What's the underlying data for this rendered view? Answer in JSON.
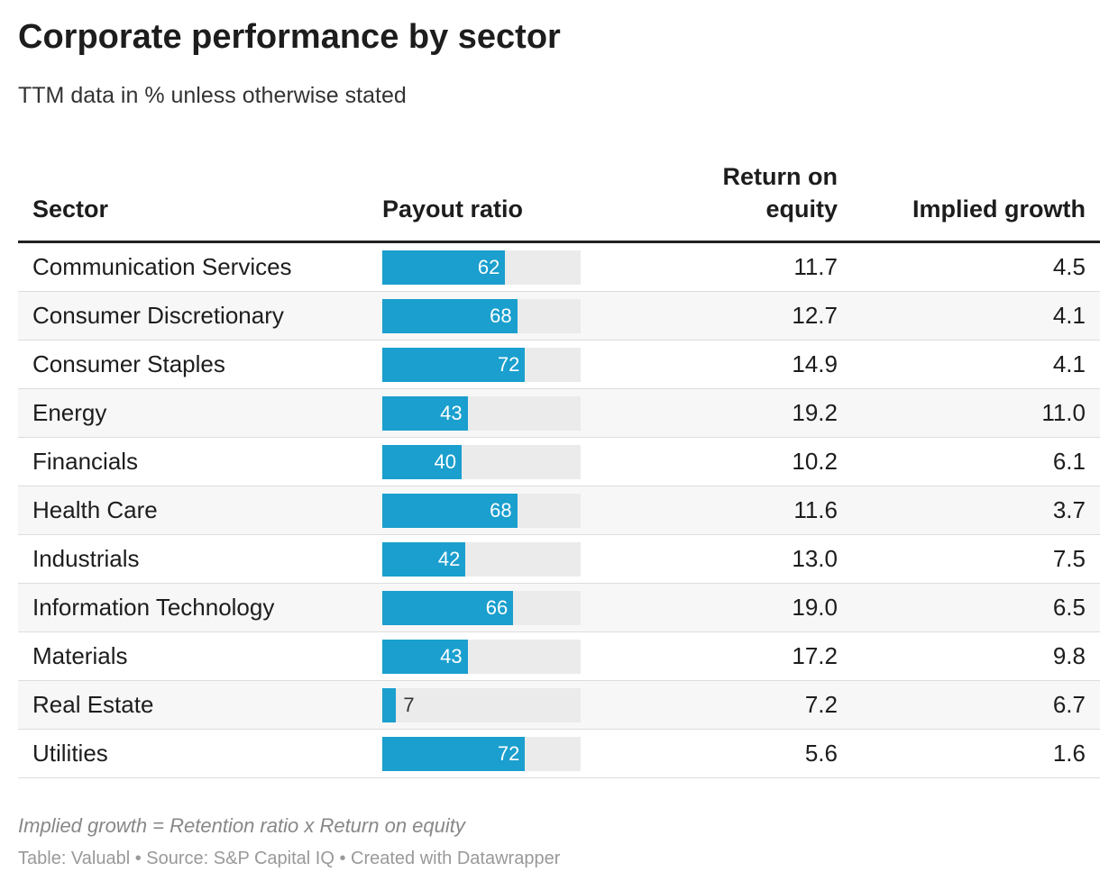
{
  "title": "Corporate performance by sector",
  "subtitle": "TTM data in % unless otherwise stated",
  "table": {
    "columns": [
      "Sector",
      "Payout ratio",
      "Return on equity",
      "Implied growth"
    ],
    "payout_xlim": [
      0,
      100
    ],
    "bar_color": "#1a9fce",
    "rows": [
      {
        "sector": "Communication Services",
        "payout": 62,
        "roe": 11.7,
        "growth": 4.5
      },
      {
        "sector": "Consumer Discretionary",
        "payout": 68,
        "roe": 12.7,
        "growth": 4.1
      },
      {
        "sector": "Consumer Staples",
        "payout": 72,
        "roe": 14.9,
        "growth": 4.1
      },
      {
        "sector": "Energy",
        "payout": 43,
        "roe": 19.2,
        "growth": {
          "value": 11,
          "label": "11.0"
        }
      },
      {
        "sector": "Financials",
        "payout": 40,
        "roe": 10.2,
        "growth": 6.1
      },
      {
        "sector": "Health Care",
        "payout": 68,
        "roe": 11.6,
        "growth": 3.7
      },
      {
        "sector": "Industrials",
        "payout": 42,
        "roe": {
          "value": 13,
          "label": "13.0"
        },
        "growth": 7.5
      },
      {
        "sector": "Information Technology",
        "payout": 66,
        "roe": {
          "value": 19,
          "label": "19.0"
        },
        "growth": 6.5
      },
      {
        "sector": "Materials",
        "payout": 43,
        "roe": 17.2,
        "growth": 9.8
      },
      {
        "sector": "Real Estate",
        "payout": 7,
        "roe": 7.2,
        "growth": 6.7
      },
      {
        "sector": "Utilities",
        "payout": 72,
        "roe": 5.6,
        "growth": 1.6
      }
    ]
  },
  "note": "Implied growth = Retention ratio x Return on equity",
  "footer": "Table: Valuabl • Source: S&P Capital IQ • Created with Datawrapper"
}
